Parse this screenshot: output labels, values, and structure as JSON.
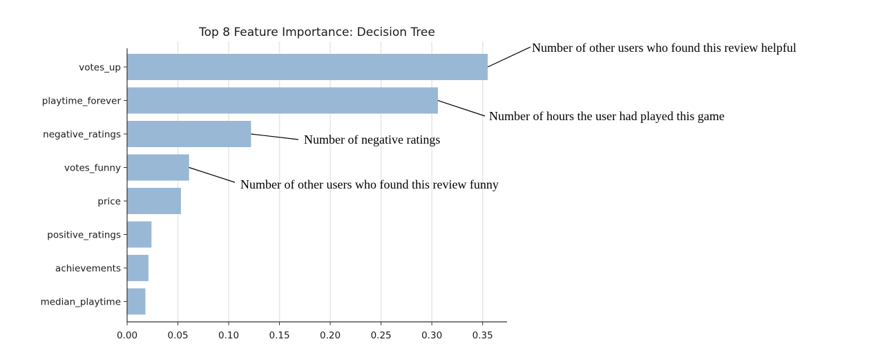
{
  "chart_data": {
    "type": "bar",
    "orientation": "horizontal",
    "title": "Top 8 Feature Importance: Decision Tree",
    "xlabel": "",
    "ylabel": "",
    "categories": [
      "votes_up",
      "playtime_forever",
      "negative_ratings",
      "votes_funny",
      "price",
      "positive_ratings",
      "achievements",
      "median_playtime"
    ],
    "values": [
      0.355,
      0.306,
      0.122,
      0.061,
      0.053,
      0.024,
      0.021,
      0.018
    ],
    "xlim": [
      0,
      0.375
    ],
    "xticks": [
      0.0,
      0.05,
      0.1,
      0.15,
      0.2,
      0.25,
      0.3,
      0.35
    ],
    "xtick_labels": [
      "0.00",
      "0.05",
      "0.10",
      "0.15",
      "0.20",
      "0.25",
      "0.30",
      "0.35"
    ],
    "grid": "vertical",
    "bar_color": "#98b8d5",
    "annotations": [
      {
        "category": "votes_up",
        "text": "Number of other users who found this review helpful"
      },
      {
        "category": "playtime_forever",
        "text": "Number of hours the user had played this game"
      },
      {
        "category": "negative_ratings",
        "text": "Number of negative ratings"
      },
      {
        "category": "votes_funny",
        "text": "Number of other users who found this review funny"
      }
    ]
  }
}
